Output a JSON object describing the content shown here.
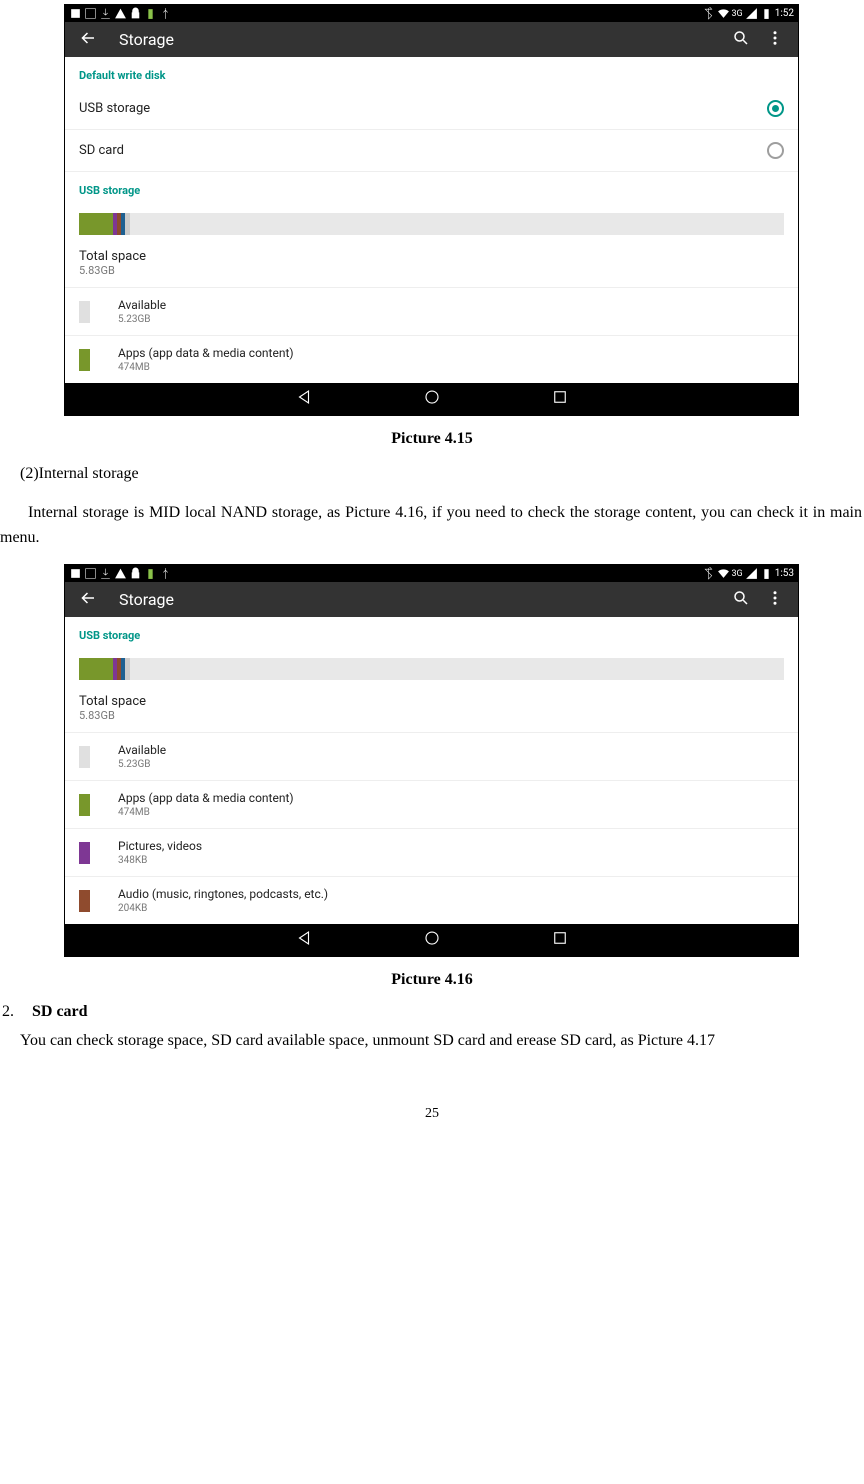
{
  "shot1": {
    "status_time": "1:52",
    "status_net": "3G",
    "appbar_title": "Storage",
    "section_default": "Default write disk",
    "opt_usb": "USB storage",
    "opt_sd": "SD card",
    "section_usb": "USB storage",
    "bar_segments": [
      {
        "w": 4.8,
        "c": "#78972b"
      },
      {
        "w": 0.6,
        "c": "#7e3794"
      },
      {
        "w": 0.6,
        "c": "#8f4b2e"
      },
      {
        "w": 0.6,
        "c": "#1e6091"
      },
      {
        "w": 0.6,
        "c": "#cccccc"
      },
      {
        "w": 92.8,
        "c": "#e8e8e8"
      }
    ],
    "total_label": "Total space",
    "total_value": "5.83GB",
    "items": [
      {
        "name": "Available",
        "val": "5.23GB",
        "color": "#e0e0e0"
      },
      {
        "name": "Apps (app data & media content)",
        "val": "474MB",
        "color": "#78972b"
      }
    ]
  },
  "shot2": {
    "status_time": "1:53",
    "status_net": "3G",
    "appbar_title": "Storage",
    "section_usb": "USB storage",
    "bar_segments": [
      {
        "w": 4.8,
        "c": "#78972b"
      },
      {
        "w": 0.6,
        "c": "#7e3794"
      },
      {
        "w": 0.6,
        "c": "#8f4b2e"
      },
      {
        "w": 0.6,
        "c": "#1e6091"
      },
      {
        "w": 0.6,
        "c": "#cccccc"
      },
      {
        "w": 92.8,
        "c": "#e8e8e8"
      }
    ],
    "total_label": "Total space",
    "total_value": "5.83GB",
    "items": [
      {
        "name": "Available",
        "val": "5.23GB",
        "color": "#e0e0e0"
      },
      {
        "name": "Apps (app data & media content)",
        "val": "474MB",
        "color": "#78972b"
      },
      {
        "name": "Pictures, videos",
        "val": "348KB",
        "color": "#7e3794"
      },
      {
        "name": "Audio (music, ringtones, podcasts, etc.)",
        "val": "204KB",
        "color": "#8f4b2e"
      }
    ]
  },
  "caption1": "Picture 4.15",
  "caption2": "Picture 4.16",
  "p_int_title": "(2)Internal storage",
  "p_int_body": "Internal storage is MID local NAND storage, as Picture 4.16, if you need to check the storage content, you can check it in main menu.",
  "sd_num": "2.",
  "sd_title": "SD card",
  "sd_body": "You can check storage space, SD card available space, unmount SD card and erease SD card, as Picture 4.17",
  "pagenum": "25"
}
